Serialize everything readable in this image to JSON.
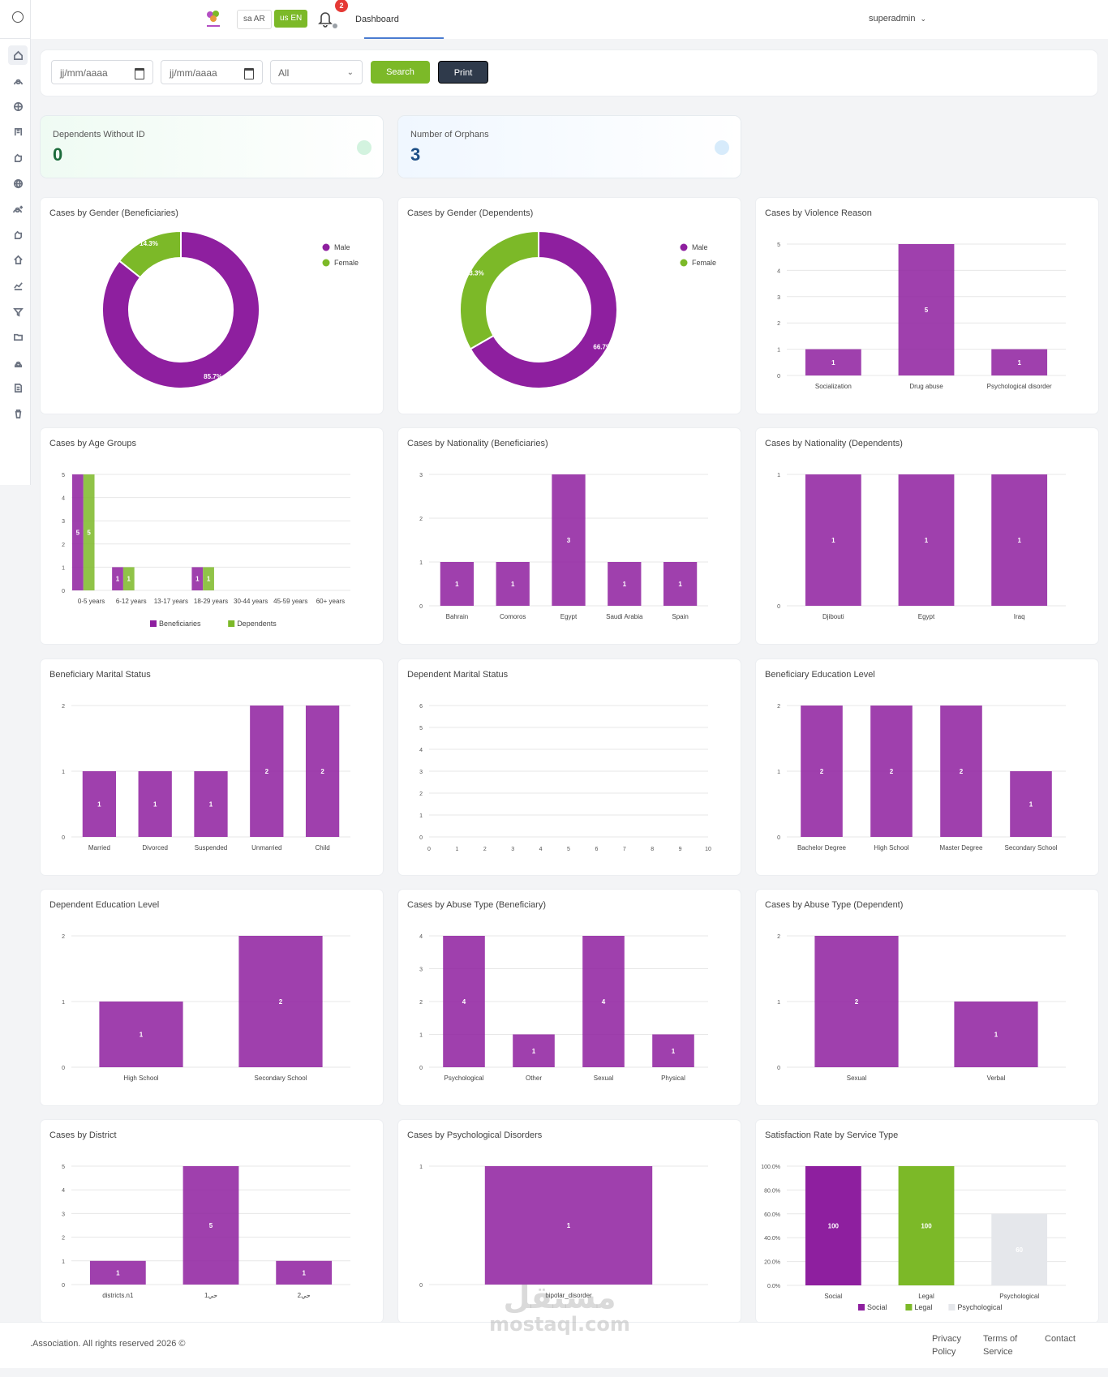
{
  "header": {
    "lang_ar": "sa AR",
    "lang_en": "us EN",
    "notifications": "2",
    "tab": "Dashboard",
    "user": "superadmin"
  },
  "sidebar": {
    "icons": [
      "home-icon",
      "user-icon",
      "network-icon",
      "building-icon",
      "hand-icon",
      "globe-icon",
      "user-add-icon",
      "hand-icon",
      "house-icon",
      "chart-line-icon",
      "filter-icon",
      "folder-icon",
      "person-icon",
      "report-icon",
      "trash-icon"
    ]
  },
  "filters": {
    "from_placeholder": "jj/mm/aaaa",
    "to_placeholder": "jj/mm/aaaa",
    "select_value": "All",
    "search_label": "Search",
    "print_label": "Print"
  },
  "stats": [
    {
      "label": "Dependents Without ID",
      "value": "0",
      "color": "#1c6b3b",
      "bg": "#effbf3",
      "circle": "#d3f3df"
    },
    {
      "label": "Number of Orphans",
      "value": "3",
      "color": "#1d4f86",
      "bg": "#f0f7ff",
      "circle": "#d7ebfb"
    }
  ],
  "colors": {
    "purple": "#8e1f9f",
    "green": "#7cb928",
    "grey": "#e5e7eb"
  },
  "footer": {
    "copyright": ".Association. All rights reserved 2026 ©",
    "privacy": [
      "Privacy",
      "Policy"
    ],
    "terms": [
      "Terms of",
      "Service"
    ],
    "contact": "Contact"
  },
  "watermark": {
    "arabic": "مستقل",
    "latin": "mostaql.com"
  },
  "chart_data": [
    {
      "title": "Cases by Gender (Beneficiaries)",
      "type": "pie",
      "categories": [
        "Male",
        "Female"
      ],
      "values": [
        85.7,
        14.3
      ],
      "labels": [
        "85.7%",
        "14.3%"
      ],
      "legend": [
        "Male",
        "Female"
      ],
      "colors": [
        "#8e1f9f",
        "#7cb928"
      ]
    },
    {
      "title": "Cases by Gender (Dependents)",
      "type": "pie",
      "categories": [
        "Male",
        "Female"
      ],
      "values": [
        66.7,
        33.3
      ],
      "labels": [
        "66.7%",
        "33.3%"
      ],
      "legend": [
        "Male",
        "Female"
      ],
      "colors": [
        "#8e1f9f",
        "#7cb928"
      ]
    },
    {
      "title": "Cases by Violence Reason",
      "type": "bar",
      "categories": [
        "Socialization",
        "Drug abuse",
        "Psychological disorder"
      ],
      "values": [
        1,
        5,
        1
      ],
      "ylim": [
        0,
        5
      ],
      "yticks": [
        "0",
        "1",
        "2",
        "3",
        "4",
        "5"
      ]
    },
    {
      "title": "Cases by Age Groups",
      "type": "bar",
      "categories": [
        "0-5 years",
        "6-12 years",
        "13-17 years",
        "18-29 years",
        "30-44 years",
        "45-59 years",
        "60+ years"
      ],
      "series": [
        {
          "name": "Beneficiaries",
          "values": [
            5,
            1,
            0,
            1,
            0,
            0,
            0
          ]
        },
        {
          "name": "Dependents",
          "values": [
            5,
            1,
            0,
            1,
            0,
            0,
            0
          ]
        }
      ],
      "ylim": [
        0,
        5
      ],
      "yticks": [
        "0",
        "1",
        "2",
        "3",
        "4",
        "5"
      ],
      "legend": [
        "Beneficiaries",
        "Dependents"
      ]
    },
    {
      "title": "Cases by Nationality (Beneficiaries)",
      "type": "bar",
      "categories": [
        "Bahrain",
        "Comoros",
        "Egypt",
        "Saudi Arabia",
        "Spain"
      ],
      "values": [
        1,
        1,
        3,
        1,
        1
      ],
      "ylim": [
        0,
        3
      ],
      "yticks": [
        "0",
        "1",
        "2",
        "3"
      ]
    },
    {
      "title": "Cases by Nationality (Dependents)",
      "type": "bar",
      "categories": [
        "Djibouti",
        "Egypt",
        "Iraq"
      ],
      "values": [
        1,
        1,
        1
      ],
      "ylim": [
        0,
        1
      ],
      "yticks": [
        "0",
        "1"
      ]
    },
    {
      "title": "Beneficiary Marital Status",
      "type": "bar",
      "categories": [
        "Married",
        "Divorced",
        "Suspended",
        "Unmarried",
        "Child"
      ],
      "values": [
        1,
        1,
        1,
        2,
        2
      ],
      "ylim": [
        0,
        2
      ],
      "yticks": [
        "0",
        "1",
        "2"
      ]
    },
    {
      "title": "Dependent Marital Status",
      "type": "bar",
      "categories": [],
      "values": [],
      "ylim": [
        0,
        6
      ],
      "yticks": [
        "0",
        "1",
        "2",
        "3",
        "4",
        "5",
        "6"
      ],
      "xticks": [
        "0",
        "1",
        "2",
        "3",
        "4",
        "5",
        "6",
        "7",
        "8",
        "9",
        "10"
      ]
    },
    {
      "title": "Beneficiary Education Level",
      "type": "bar",
      "categories": [
        "Bachelor Degree",
        "High School",
        "Master Degree",
        "Secondary School"
      ],
      "values": [
        2,
        2,
        2,
        1
      ],
      "ylim": [
        0,
        2
      ],
      "yticks": [
        "0",
        "1",
        "2"
      ]
    },
    {
      "title": "Dependent Education Level",
      "type": "bar",
      "categories": [
        "High School",
        "Secondary School"
      ],
      "values": [
        1,
        2
      ],
      "ylim": [
        0,
        2
      ],
      "yticks": [
        "0",
        "1",
        "2"
      ]
    },
    {
      "title": "Cases by Abuse Type (Beneficiary)",
      "type": "bar",
      "categories": [
        "Psychological",
        "Other",
        "Sexual",
        "Physical"
      ],
      "values": [
        4,
        1,
        4,
        1
      ],
      "ylim": [
        0,
        4
      ],
      "yticks": [
        "0",
        "1",
        "2",
        "3",
        "4"
      ]
    },
    {
      "title": "Cases by Abuse Type (Dependent)",
      "type": "bar",
      "categories": [
        "Sexual",
        "Verbal"
      ],
      "values": [
        2,
        1
      ],
      "ylim": [
        0,
        2
      ],
      "yticks": [
        "0",
        "1",
        "2"
      ]
    },
    {
      "title": "Cases by District",
      "type": "bar",
      "categories": [
        "districts.n1",
        "حي1",
        "حي2"
      ],
      "values": [
        1,
        5,
        1
      ],
      "ylim": [
        0,
        5
      ],
      "yticks": [
        "0",
        "1",
        "2",
        "3",
        "4",
        "5"
      ]
    },
    {
      "title": "Cases by Psychological Disorders",
      "type": "bar",
      "categories": [
        "bipolar_disorder"
      ],
      "values": [
        1
      ],
      "ylim": [
        0,
        1
      ],
      "yticks": [
        "0",
        "1"
      ]
    },
    {
      "title": "Satisfaction Rate by Service Type",
      "type": "bar",
      "categories": [
        "Social",
        "Legal",
        "Psychological"
      ],
      "values": [
        100,
        100,
        60
      ],
      "ylim": [
        0,
        100
      ],
      "yticks": [
        "0.0%",
        "20.0%",
        "40.0%",
        "60.0%",
        "80.0%",
        "100.0%"
      ],
      "legend": [
        "Social",
        "Legal",
        "Psychological"
      ],
      "colors": [
        "#8e1f9f",
        "#7cb928",
        "#e5e7eb"
      ]
    }
  ]
}
